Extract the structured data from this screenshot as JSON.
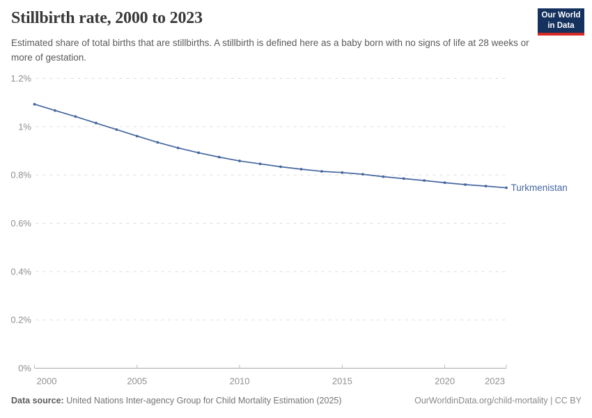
{
  "header": {
    "title": "Stillbirth rate, 2000 to 2023",
    "subtitle": "Estimated share of total births that are stillbirths. A stillbirth is defined here as a baby born with no signs of life at 28 weeks or more of gestation.",
    "logo": {
      "line1": "Our World",
      "line2": "in Data",
      "bg_color": "#15315d",
      "accent_color": "#d42b27"
    }
  },
  "chart_data": {
    "type": "line",
    "title": "Stillbirth rate, 2000 to 2023",
    "xlabel": "",
    "ylabel": "",
    "unit": "%",
    "grid": true,
    "legend_position": "end-of-line",
    "ylim": [
      0,
      1.2
    ],
    "yticks": [
      0,
      0.2,
      0.4,
      0.6,
      0.8,
      1.0,
      1.2
    ],
    "ytick_labels": [
      "0%",
      "0.2%",
      "0.4%",
      "0.6%",
      "0.8%",
      "1%",
      "1.2%"
    ],
    "xticks": [
      2000,
      2005,
      2010,
      2015,
      2020,
      2023
    ],
    "x": [
      2000,
      2001,
      2002,
      2003,
      2004,
      2005,
      2006,
      2007,
      2008,
      2009,
      2010,
      2011,
      2012,
      2013,
      2014,
      2015,
      2016,
      2017,
      2018,
      2019,
      2020,
      2021,
      2022,
      2023
    ],
    "series": [
      {
        "name": "Turkmenistan",
        "color": "#44669e",
        "values": [
          1.093,
          1.067,
          1.042,
          1.015,
          0.988,
          0.961,
          0.935,
          0.912,
          0.892,
          0.874,
          0.858,
          0.846,
          0.834,
          0.824,
          0.815,
          0.81,
          0.803,
          0.793,
          0.785,
          0.777,
          0.768,
          0.76,
          0.754,
          0.747
        ]
      }
    ],
    "axis_text_color": "#8f8f8f",
    "gridline_color": "#dcdcdc",
    "axisline_color": "#a8a8a8"
  },
  "footer": {
    "datasource_label": "Data source:",
    "datasource_text": " United Nations Inter-agency Group for Child Mortality Estimation (2025)",
    "link_text": "OurWorldinData.org/child-mortality | CC BY"
  }
}
